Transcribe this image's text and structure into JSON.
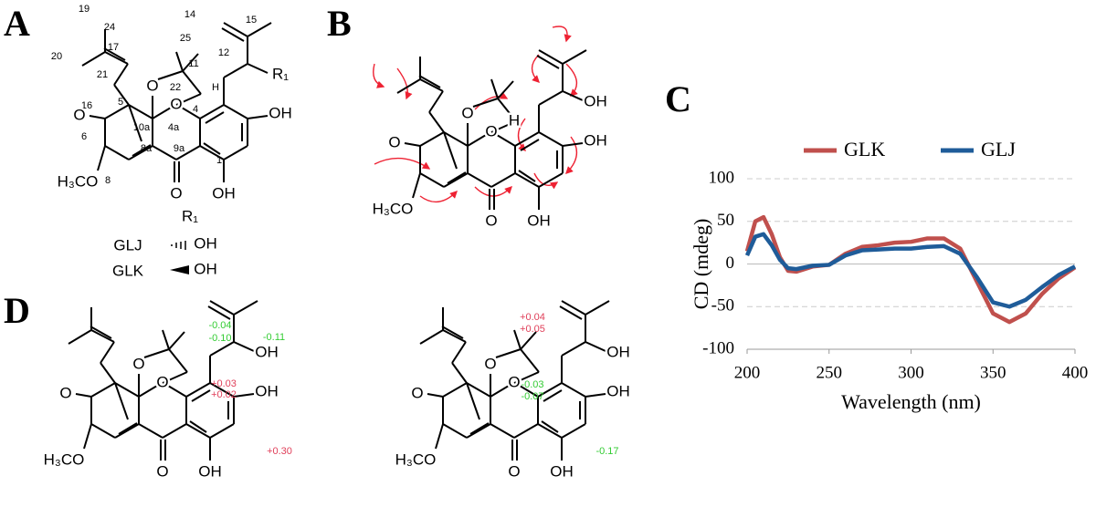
{
  "panels": {
    "a": "A",
    "b": "B",
    "c": "C",
    "d": "D"
  },
  "structure_a": {
    "atoms": [
      "O",
      "O",
      "OH",
      "OH",
      "R₁",
      "O",
      "H₃CO",
      "O"
    ],
    "numbers": [
      "19",
      "24",
      "25",
      "14",
      "15",
      "20",
      "17",
      "12",
      "21",
      "22",
      "H",
      "11",
      "16",
      "5",
      "10a",
      "4a",
      "4",
      "6",
      "9a",
      "8a",
      "8",
      "1"
    ],
    "r1_table": {
      "header": "R₁",
      "rows": [
        {
          "name": "GLJ",
          "group": "OH"
        },
        {
          "name": "GLK",
          "group": "OH"
        }
      ]
    }
  },
  "structure_b": {
    "atoms": [
      "O",
      "O",
      "OH",
      "OH",
      "OH",
      "O",
      "H₃CO",
      "O"
    ],
    "extra": [
      "H"
    ]
  },
  "structure_d1": {
    "atoms": [
      "O",
      "O",
      "OH",
      "OH",
      "OH",
      "O",
      "H₃CO",
      "O"
    ],
    "deltas": [
      {
        "text": "-0.04",
        "color": "#33cc33"
      },
      {
        "text": "-0.10",
        "color": "#33cc33"
      },
      {
        "text": "-0.11",
        "color": "#33cc33"
      },
      {
        "text": "+0.03",
        "color": "#e0405a"
      },
      {
        "text": "+0.02",
        "color": "#e0405a"
      },
      {
        "text": "+0.30",
        "color": "#e0405a"
      }
    ]
  },
  "structure_d2": {
    "atoms": [
      "O",
      "O",
      "OH",
      "OH",
      "OH",
      "O",
      "H₃CO",
      "O"
    ],
    "deltas": [
      {
        "text": "+0.04",
        "color": "#e0405a"
      },
      {
        "text": "+0.05",
        "color": "#e0405a"
      },
      {
        "text": "-0.03",
        "color": "#33cc33"
      },
      {
        "text": "-0.07",
        "color": "#33cc33"
      },
      {
        "text": "-0.17",
        "color": "#33cc33"
      }
    ]
  },
  "chart_data": {
    "type": "line",
    "x_label": "Wavelength (nm)",
    "y_label": "CD (mdeg)",
    "x": [
      200,
      205,
      210,
      215,
      220,
      225,
      230,
      240,
      250,
      260,
      270,
      280,
      290,
      300,
      310,
      320,
      330,
      340,
      350,
      360,
      370,
      380,
      390,
      400
    ],
    "series": [
      {
        "name": "GLK",
        "color": "#c0504d",
        "values": [
          15,
          50,
          55,
          35,
          8,
          -8,
          -9,
          -3,
          -1,
          12,
          20,
          22,
          25,
          26,
          30,
          30,
          18,
          -20,
          -58,
          -68,
          -58,
          -35,
          -17,
          -4
        ]
      },
      {
        "name": "GLJ",
        "color": "#1f5c99",
        "values": [
          10,
          32,
          35,
          22,
          5,
          -5,
          -6,
          -2,
          -1,
          10,
          16,
          17,
          18,
          18,
          20,
          21,
          12,
          -15,
          -45,
          -50,
          -42,
          -27,
          -13,
          -3
        ]
      }
    ],
    "xlim": [
      200,
      400
    ],
    "xticks": [
      200,
      250,
      300,
      350,
      400
    ],
    "ylim": [
      -100,
      100
    ],
    "yticks": [
      -100,
      -50,
      0,
      50,
      100
    ],
    "grid": true
  }
}
